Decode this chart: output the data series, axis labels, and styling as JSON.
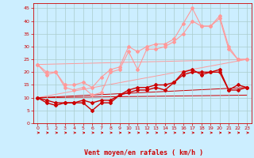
{
  "x": [
    0,
    1,
    2,
    3,
    4,
    5,
    6,
    7,
    8,
    9,
    10,
    11,
    12,
    13,
    14,
    15,
    16,
    17,
    18,
    19,
    20,
    21,
    22,
    23
  ],
  "line_dark1": [
    10,
    8,
    7,
    8,
    8,
    8,
    5,
    8,
    8,
    11,
    12,
    13,
    13,
    14,
    13,
    16,
    20,
    21,
    19,
    20,
    20,
    13,
    15,
    14
  ],
  "line_dark2": [
    10,
    9,
    8,
    8,
    8,
    9,
    8,
    9,
    9,
    11,
    13,
    14,
    14,
    15,
    15,
    16,
    19,
    20,
    20,
    20,
    21,
    13,
    13,
    14
  ],
  "line_light1": [
    23,
    19,
    20,
    14,
    13,
    14,
    11,
    12,
    20,
    21,
    28,
    21,
    29,
    29,
    30,
    32,
    35,
    40,
    38,
    38,
    41,
    29,
    25,
    25
  ],
  "line_light2": [
    23,
    20,
    20,
    15,
    15,
    16,
    14,
    18,
    21,
    22,
    30,
    28,
    30,
    31,
    31,
    33,
    39,
    45,
    38,
    38,
    42,
    30,
    25,
    25
  ],
  "trend_dark1": [
    10,
    14
  ],
  "trend_dark2": [
    10,
    11
  ],
  "trend_light1": [
    23,
    25
  ],
  "trend_light2": [
    10,
    25
  ],
  "bg_color": "#cceeff",
  "grid_color": "#aacccc",
  "line_dark_red": "#cc0000",
  "line_light_red": "#ff9999",
  "xlabel": "Vent moyen/en rafales ( km/h )",
  "xlabel_color": "#cc0000",
  "tick_color": "#cc0000",
  "yticks": [
    0,
    5,
    10,
    15,
    20,
    25,
    30,
    35,
    40,
    45
  ],
  "ylim": [
    0,
    47
  ],
  "xlim": [
    -0.5,
    23.5
  ]
}
